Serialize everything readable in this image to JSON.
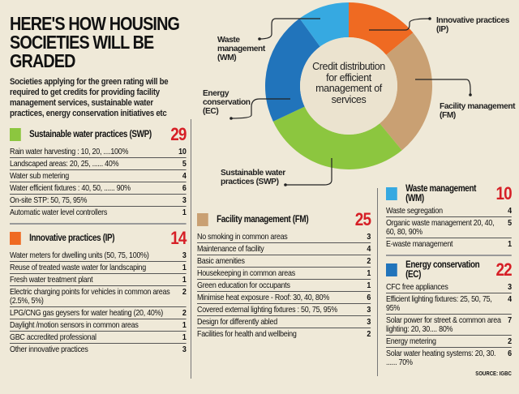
{
  "header": {
    "title": "HERE'S HOW HOUSING SOCIETIES WILL BE GRADED",
    "intro": "Societies applying for the green rating will be required to get credits for providing facility management services, sustainable water practices, energy conservation initiatives etc"
  },
  "chart_data": {
    "type": "pie",
    "title": "Credit distribution for efficient management of services",
    "categories": [
      "Innovative practices (IP)",
      "Facility management (FM)",
      "Sustainable water practices (SWP)",
      "Energy conservation (EC)",
      "Waste management (WM)"
    ],
    "values": [
      14,
      25,
      29,
      22,
      10
    ],
    "colors": [
      "#ef6a22",
      "#c9a073",
      "#8cc63f",
      "#2174bb",
      "#36a9e1"
    ],
    "labels": {
      "ip": "Innovative practices (IP)",
      "fm": "Facility management (FM)",
      "swp": "Sustainable water practices (SWP)",
      "ec": "Energy conservation (EC)",
      "wm": "Waste management (WM)"
    }
  },
  "swp": {
    "name": "Sustainable water practices (SWP)",
    "total": "29",
    "color": "#8cc63f",
    "items": [
      {
        "label": "Rain water harvesting : 10, 20, ....100%",
        "value": "10"
      },
      {
        "label": "Landscaped areas: 20, 25, ...... 40%",
        "value": "5"
      },
      {
        "label": "Water sub metering",
        "value": "4"
      },
      {
        "label": "Water efficient fixtures : 40, 50, ...... 90%",
        "value": "6"
      },
      {
        "label": "On-site STP: 50, 75, 95%",
        "value": "3"
      },
      {
        "label": "Automatic water level controllers",
        "value": "1"
      }
    ]
  },
  "ip": {
    "name": "Innovative practices (IP)",
    "total": "14",
    "color": "#ef6a22",
    "items": [
      {
        "label": "Water meters for dwelling units (50, 75, 100%)",
        "value": "3"
      },
      {
        "label": "Reuse of treated waste water for landscaping",
        "value": "1"
      },
      {
        "label": "Fresh water treatment plant",
        "value": "1"
      },
      {
        "label": "Electric charging points for vehicles in common areas (2.5%, 5%)",
        "value": "2"
      },
      {
        "label": "LPG/CNG gas geysers for water heating (20, 40%)",
        "value": "2"
      },
      {
        "label": "Daylight /motion sensors in common areas",
        "value": "1"
      },
      {
        "label": "GBC accredited professional",
        "value": "1"
      },
      {
        "label": "Other innovative practices",
        "value": "3"
      }
    ]
  },
  "fm": {
    "name": "Facility management (FM)",
    "total": "25",
    "color": "#c9a073",
    "items": [
      {
        "label": "No smoking in common areas",
        "value": "3"
      },
      {
        "label": "Maintenance of facility",
        "value": "4"
      },
      {
        "label": "Basic amenities",
        "value": "2"
      },
      {
        "label": "Housekeeping in common areas",
        "value": "1"
      },
      {
        "label": "Green education for occupants",
        "value": "1"
      },
      {
        "label": "Minimise heat exposure - Roof: 30, 40, 80%",
        "value": "6"
      },
      {
        "label": "Covered external lighting fixtures : 50, 75, 95%",
        "value": "3"
      },
      {
        "label": "Design for differently abled",
        "value": "3"
      },
      {
        "label": "Facilities for health and wellbeing",
        "value": "2"
      }
    ]
  },
  "wm": {
    "name": "Waste management (WM)",
    "total": "10",
    "color": "#36a9e1",
    "items": [
      {
        "label": "Waste segregation",
        "value": "4"
      },
      {
        "label": "Organic waste management 20, 40, 60, 80, 90%",
        "value": "5"
      },
      {
        "label": "E-waste management",
        "value": "1"
      }
    ]
  },
  "ec": {
    "name": "Energy conservation (EC)",
    "total": "22",
    "color": "#2174bb",
    "items": [
      {
        "label": "CFC free appliances",
        "value": "3"
      },
      {
        "label": "Efficient lighting fixtures: 25, 50, 75, 95%",
        "value": "4"
      },
      {
        "label": "Solar power for street & common area lighting: 20, 30.... 80%",
        "value": "7"
      },
      {
        "label": "Energy metering",
        "value": "2"
      },
      {
        "label": "Solar water heating systems: 20, 30. ...... 70%",
        "value": "6"
      }
    ]
  },
  "source": "SOURCE: IGBC"
}
